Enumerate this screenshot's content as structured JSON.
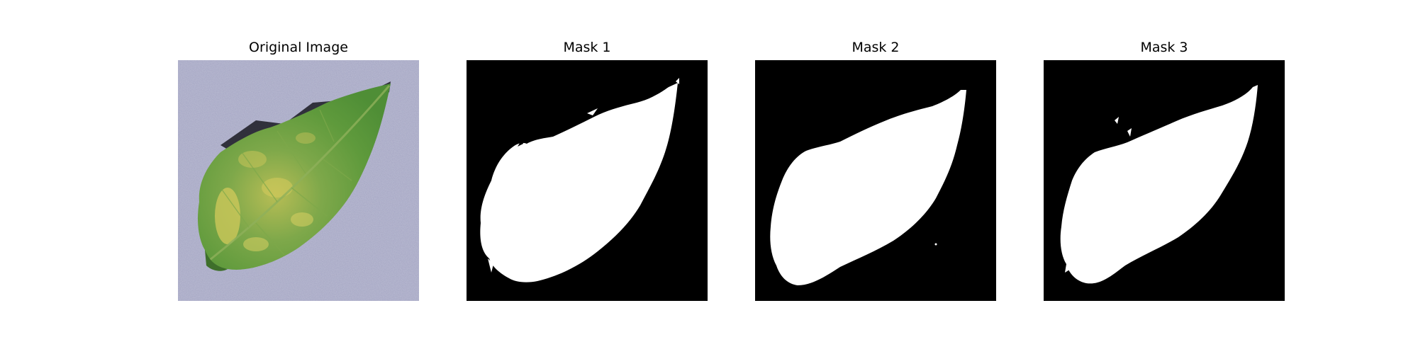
{
  "panels": [
    {
      "title": "Original Image"
    },
    {
      "title": "Mask 1"
    },
    {
      "title": "Mask 2"
    },
    {
      "title": "Mask 3"
    }
  ],
  "colors": {
    "background": "#ffffff",
    "mask_background": "#000000",
    "mask_foreground": "#ffffff",
    "photo_background": "#a3a4c2",
    "leaf_green": "#5f9a3c",
    "leaf_yellow": "#c9c45a",
    "leaf_shadow": "#1a1a22"
  }
}
